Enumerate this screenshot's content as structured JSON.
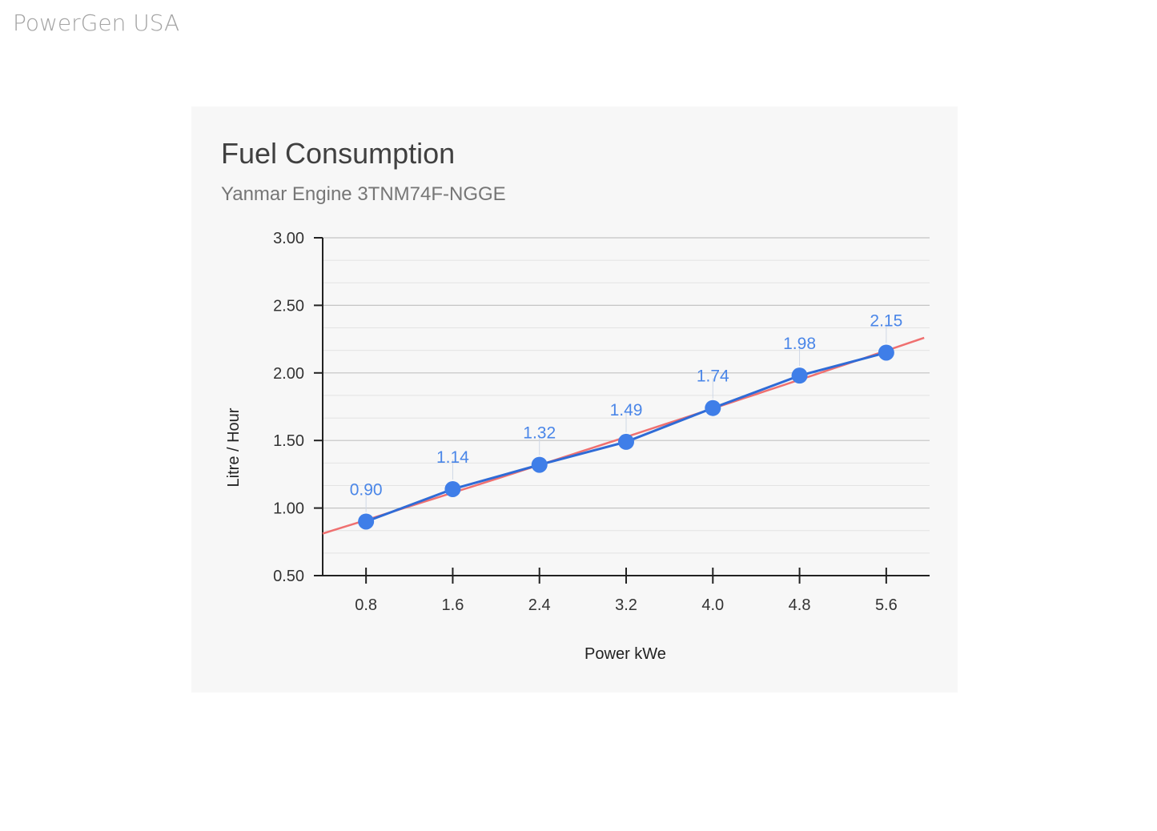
{
  "brand": "PowerGen USA",
  "colors": {
    "series": "#3f7ee8",
    "series_line": "#2f6bd6",
    "trend": "#ef7070",
    "grid": "#cfcfcf",
    "axis": "#222222"
  },
  "chart_data": {
    "type": "line",
    "title": "Fuel Consumption",
    "subtitle": "Yanmar Engine 3TNM74F-NGGE",
    "xlabel": "Power kWe",
    "ylabel": "Litre / Hour",
    "x": [
      0.8,
      1.6,
      2.4,
      3.2,
      4.0,
      4.8,
      5.6
    ],
    "x_tick_labels": [
      "0.8",
      "1.6",
      "2.4",
      "3.2",
      "4.0",
      "4.8",
      "5.6"
    ],
    "y_tick_labels": [
      "0.50",
      "1.00",
      "1.50",
      "2.00",
      "2.50",
      "3.00"
    ],
    "y_ticks": [
      0.5,
      1.0,
      1.5,
      2.0,
      2.5,
      3.0
    ],
    "ylim": [
      0.5,
      3.0
    ],
    "xlim": [
      0.4,
      6.0
    ],
    "grid": true,
    "legend": "none",
    "series": [
      {
        "values": [
          0.9,
          1.14,
          1.32,
          1.49,
          1.74,
          1.98,
          2.15
        ],
        "data_labels": [
          "0.90",
          "1.14",
          "1.32",
          "1.49",
          "1.74",
          "1.98",
          "2.15"
        ]
      }
    ],
    "trendline": {
      "type": "polynomial",
      "x_range": [
        0.4,
        5.95
      ],
      "y_range": [
        0.91,
        2.38
      ]
    }
  }
}
